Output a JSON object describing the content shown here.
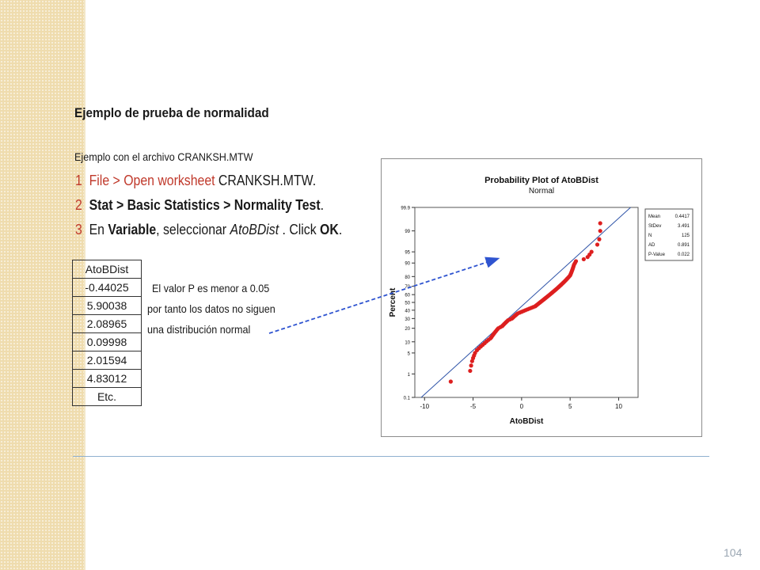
{
  "slide": {
    "title": "Ejemplo de prueba de normalidad",
    "subtitle": "Ejemplo con el archivo CRANKSH.MTW",
    "page_number": "104"
  },
  "steps": [
    {
      "number": "1",
      "menu": "File > Open worksheet",
      "text": " CRANKSH.MTW."
    },
    {
      "number": "2",
      "menu": "Stat > Basic Statistics > Normality Test",
      "text": "."
    },
    {
      "number": "3",
      "pre": "En ",
      "variable": "Variable",
      "mid": ", seleccionar ",
      "column": "AtoBDist",
      "post": " . Click ",
      "ok": "OK",
      "end": "."
    }
  ],
  "data_table": {
    "header": "AtoBDist",
    "rows": [
      "-0.44025",
      "5.90038",
      "2.08965",
      "0.09998",
      "2.01594",
      "4.83012",
      "Etc."
    ]
  },
  "note": [
    "El valor P es menor a 0.05",
    "por tanto los datos no siguen",
    "una distribución normal"
  ],
  "chart_data": {
    "type": "scatter",
    "title": "Probability Plot of AtoBDist",
    "subtitle": "Normal",
    "xlabel": "AtoBDist",
    "ylabel": "Percent",
    "xlim": [
      -11,
      12
    ],
    "x_ticks": [
      -10,
      -5,
      0,
      5,
      10
    ],
    "y_ticks": [
      0.1,
      1,
      5,
      10,
      20,
      30,
      40,
      50,
      60,
      70,
      80,
      90,
      95,
      99,
      99.9
    ],
    "y_scale": "normal-probability",
    "fit_line": {
      "mean": 0.4417,
      "stdev": 3.491
    },
    "points_color": "#dd1f1f",
    "line_color": "#2f54a8",
    "stats_box": [
      {
        "label": "Mean",
        "value": "0.4417"
      },
      {
        "label": "StDev",
        "value": "3.491"
      },
      {
        "label": "N",
        "value": "125"
      },
      {
        "label": "AD",
        "value": "0.891"
      },
      {
        "label": "P-Value",
        "value": "0.022"
      }
    ],
    "points": [
      [
        -7.3,
        0.5
      ],
      [
        -5.3,
        1.3
      ],
      [
        -5.2,
        2.0
      ],
      [
        -5.1,
        2.8
      ],
      [
        -5.0,
        3.5
      ],
      [
        -4.9,
        4.2
      ],
      [
        -4.8,
        5.0
      ],
      [
        -4.6,
        6.0
      ],
      [
        -4.4,
        6.8
      ],
      [
        -4.2,
        7.6
      ],
      [
        -4.0,
        8.4
      ],
      [
        -3.8,
        9.3
      ],
      [
        -3.6,
        10.3
      ],
      [
        -3.4,
        11.2
      ],
      [
        -3.2,
        12.2
      ],
      [
        -3.1,
        13.0
      ],
      [
        -3.0,
        14.0
      ],
      [
        -2.9,
        15.0
      ],
      [
        -2.8,
        16.0
      ],
      [
        -2.7,
        17.0
      ],
      [
        -2.6,
        18.0
      ],
      [
        -2.5,
        19.0
      ],
      [
        -2.4,
        20.0
      ],
      [
        -2.2,
        21.0
      ],
      [
        -2.0,
        22.0
      ],
      [
        -1.9,
        23.0
      ],
      [
        -1.8,
        24.0
      ],
      [
        -1.7,
        25.0
      ],
      [
        -1.6,
        26.0
      ],
      [
        -1.5,
        27.0
      ],
      [
        -1.4,
        28.0
      ],
      [
        -1.2,
        29.0
      ],
      [
        -1.0,
        30.0
      ],
      [
        -0.9,
        31.0
      ],
      [
        -0.8,
        32.0
      ],
      [
        -0.7,
        33.0
      ],
      [
        -0.6,
        34.0
      ],
      [
        -0.5,
        35.0
      ],
      [
        -0.4,
        36.0
      ],
      [
        -0.2,
        37.0
      ],
      [
        0.0,
        38.0
      ],
      [
        0.2,
        39.0
      ],
      [
        0.4,
        40.0
      ],
      [
        0.6,
        41.0
      ],
      [
        0.8,
        42.0
      ],
      [
        1.0,
        43.0
      ],
      [
        1.2,
        44.0
      ],
      [
        1.4,
        45.0
      ],
      [
        1.5,
        46.0
      ],
      [
        1.6,
        47.0
      ],
      [
        1.7,
        48.0
      ],
      [
        1.8,
        49.0
      ],
      [
        1.9,
        50.0
      ],
      [
        2.0,
        51.0
      ],
      [
        2.1,
        52.0
      ],
      [
        2.2,
        53.0
      ],
      [
        2.3,
        54.0
      ],
      [
        2.4,
        55.0
      ],
      [
        2.5,
        56.0
      ],
      [
        2.6,
        57.0
      ],
      [
        2.7,
        58.0
      ],
      [
        2.8,
        59.0
      ],
      [
        2.9,
        60.0
      ],
      [
        3.0,
        61.0
      ],
      [
        3.1,
        62.0
      ],
      [
        3.2,
        63.0
      ],
      [
        3.3,
        64.0
      ],
      [
        3.4,
        65.0
      ],
      [
        3.5,
        66.0
      ],
      [
        3.6,
        67.0
      ],
      [
        3.7,
        68.0
      ],
      [
        3.8,
        69.0
      ],
      [
        3.9,
        70.0
      ],
      [
        4.0,
        71.0
      ],
      [
        4.1,
        72.0
      ],
      [
        4.2,
        73.0
      ],
      [
        4.3,
        74.0
      ],
      [
        4.4,
        75.0
      ],
      [
        4.5,
        76.0
      ],
      [
        4.6,
        77.0
      ],
      [
        4.7,
        78.0
      ],
      [
        4.8,
        79.0
      ],
      [
        4.9,
        80.0
      ],
      [
        5.0,
        81.0
      ],
      [
        5.05,
        82.0
      ],
      [
        5.1,
        83.0
      ],
      [
        5.15,
        84.0
      ],
      [
        5.2,
        85.0
      ],
      [
        5.25,
        86.0
      ],
      [
        5.3,
        87.0
      ],
      [
        5.35,
        88.0
      ],
      [
        5.4,
        89.0
      ],
      [
        5.5,
        90.0
      ],
      [
        5.6,
        91.0
      ],
      [
        6.4,
        92.0
      ],
      [
        6.8,
        93.0
      ],
      [
        7.0,
        94.0
      ],
      [
        7.2,
        95.0
      ],
      [
        7.8,
        97.0
      ],
      [
        8.0,
        98.0
      ],
      [
        8.1,
        99.0
      ],
      [
        8.1,
        99.5
      ]
    ]
  }
}
